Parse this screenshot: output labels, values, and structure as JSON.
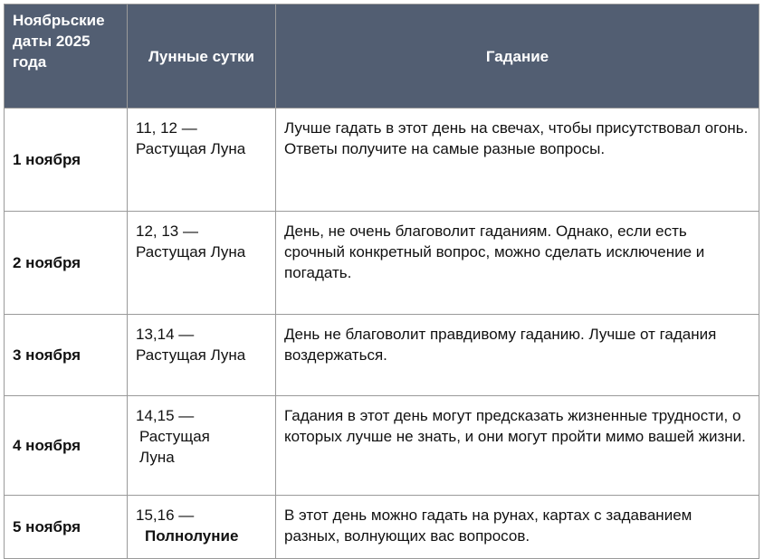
{
  "table": {
    "header": [
      "Ноябрьские даты 2025 года",
      "Лунные сутки",
      "Гадание"
    ],
    "rows": [
      {
        "date": "1 ноября",
        "lunar_days": "11, 12 —",
        "phase": "Растущая Луна",
        "divination": "Лучше гадать в этот день на свечах, чтобы присутствовал огонь. Ответы получите на самые разные вопросы."
      },
      {
        "date": "2 ноября",
        "lunar_days": "12, 13 —",
        "phase": "Растущая Луна",
        "divination": "День, не очень благоволит гаданиям. Однако, если есть срочный конкретный вопрос, можно сделать исключение и погадать."
      },
      {
        "date": "3 ноября",
        "lunar_days": "13,14 —",
        "phase": "Растущая Луна",
        "divination": "День не благоволит правдивому гаданию. Лучше от гадания воздержаться."
      },
      {
        "date": "4 ноября",
        "lunar_days": "14,15 —",
        "phase": "Растущая Луна",
        "divination": "Гадания в этот день могут предсказать жизненные трудности, о которых лучше не знать, и они могут пройти мимо вашей жизни."
      },
      {
        "date": "5 ноября",
        "lunar_days": "15,16 —",
        "phase": "Полнолуние",
        "divination": "В этот день можно гадать на рунах, картах с задаванием разных, волнующих вас вопросов."
      }
    ]
  }
}
